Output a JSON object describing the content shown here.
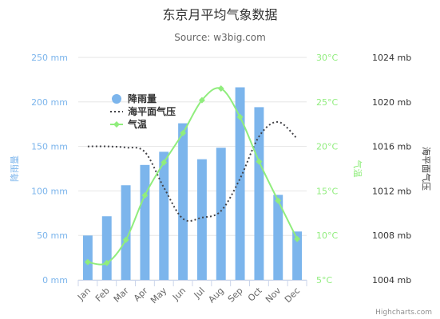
{
  "chart_data": {
    "type": "bar",
    "title": "东京月平均气象数据",
    "subtitle": "Source: w3big.com",
    "categories": [
      "Jan",
      "Feb",
      "Mar",
      "Apr",
      "May",
      "Jun",
      "Jul",
      "Aug",
      "Sep",
      "Oct",
      "Nov",
      "Dec"
    ],
    "series": [
      {
        "name": "降雨量",
        "type": "bar",
        "axis": "rainfall",
        "values": [
          49.9,
          71.5,
          106.4,
          129.2,
          144.0,
          176.0,
          135.6,
          148.5,
          216.4,
          194.1,
          95.6,
          54.4
        ]
      },
      {
        "name": "海平面气压",
        "type": "line",
        "style": "dotted",
        "axis": "pressure",
        "values": [
          1016,
          1016,
          1015.9,
          1015.5,
          1012.3,
          1009.5,
          1009.6,
          1010.2,
          1013.1,
          1016.9,
          1018.2,
          1016.7
        ]
      },
      {
        "name": "气温",
        "type": "line",
        "markers": true,
        "axis": "temperature",
        "values": [
          7.0,
          6.9,
          9.5,
          14.5,
          18.2,
          21.5,
          25.2,
          26.5,
          23.3,
          18.3,
          13.9,
          9.6
        ]
      }
    ],
    "axes": {
      "rainfall": {
        "label": "降雨量",
        "min": 0,
        "max": 250,
        "step": 50,
        "unit": " mm",
        "side": "left"
      },
      "temperature": {
        "label": "气温",
        "min": 5,
        "max": 30,
        "step": 5,
        "unit": "°C",
        "side": "right"
      },
      "pressure": {
        "label": "海平面气压",
        "min": 1004,
        "max": 1024,
        "step": 4,
        "unit": " mb",
        "side": "right"
      }
    },
    "colors": {
      "rainfall": "#7cb5ec",
      "pressure": "#434348",
      "temperature": "#90ed7d",
      "grid": "#e6e6e6"
    },
    "legend": {
      "placement": "top-left",
      "floating": true
    },
    "grid": true,
    "credits": "Highcharts.com"
  }
}
